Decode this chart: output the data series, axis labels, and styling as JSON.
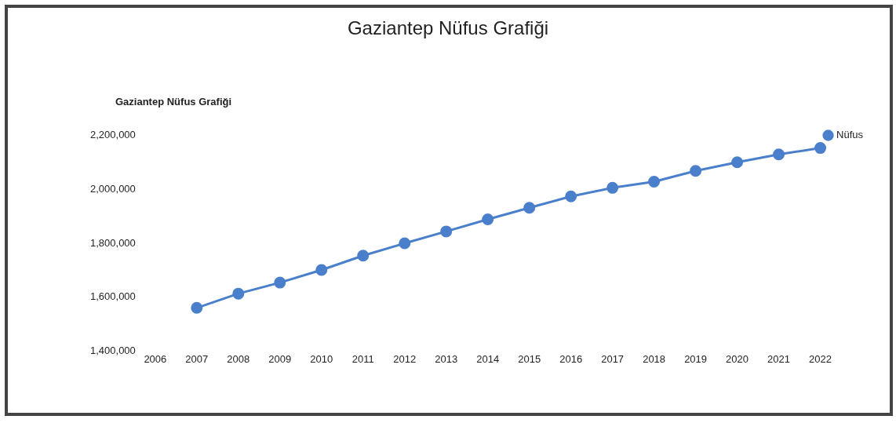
{
  "chart_data": {
    "type": "line",
    "title": "Gaziantep Nüfus Grafiği",
    "subtitle": "Gaziantep Nüfus Grafiği",
    "x": [
      2007,
      2008,
      2009,
      2010,
      2011,
      2012,
      2013,
      2014,
      2015,
      2016,
      2017,
      2018,
      2019,
      2020,
      2021,
      2022
    ],
    "series": [
      {
        "name": "Nüfus",
        "color": "#4a7fcb",
        "values": [
          1560000,
          1613000,
          1654000,
          1701000,
          1754000,
          1800000,
          1844000,
          1889000,
          1932000,
          1974000,
          2006000,
          2029000,
          2069000,
          2101000,
          2130000,
          2154000
        ]
      }
    ],
    "xlim": [
      2006,
      2022
    ],
    "xticks": [
      2006,
      2007,
      2008,
      2009,
      2010,
      2011,
      2012,
      2013,
      2014,
      2015,
      2016,
      2017,
      2018,
      2019,
      2020,
      2021,
      2022
    ],
    "ylim": [
      1400000,
      2200000
    ],
    "yticks": [
      {
        "value": 1400000,
        "label": "1,400,000"
      },
      {
        "value": 1600000,
        "label": "1,600,000"
      },
      {
        "value": 1800000,
        "label": "1,800,000"
      },
      {
        "value": 2000000,
        "label": "2,000,000"
      },
      {
        "value": 2200000,
        "label": "2,200,000"
      }
    ],
    "legend": "top right",
    "marker": "circle",
    "line_style": "solid",
    "grid": false
  }
}
